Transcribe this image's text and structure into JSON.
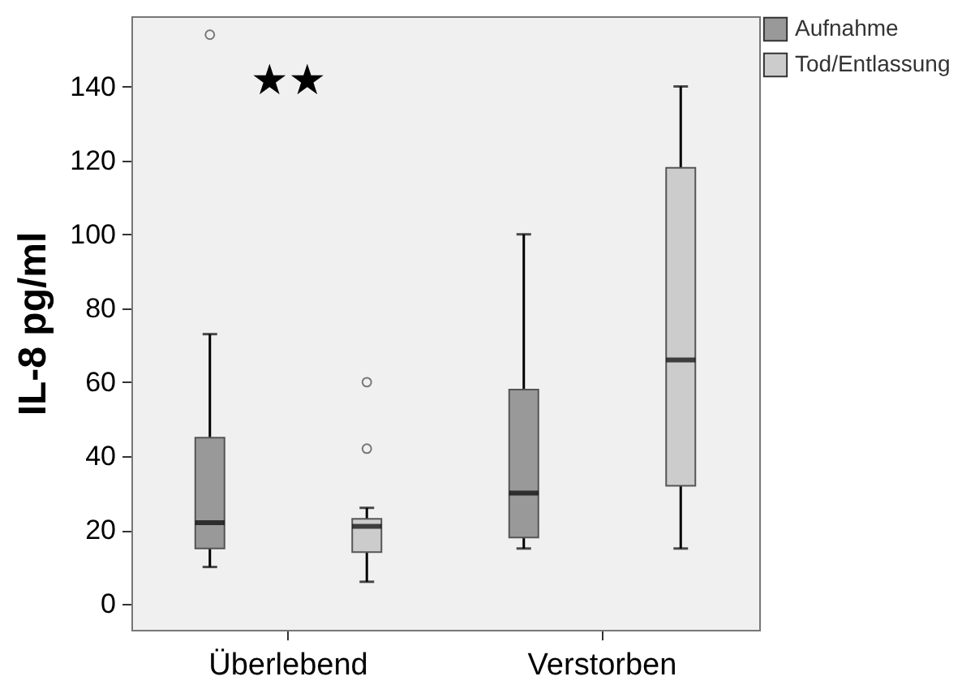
{
  "chart_data": {
    "type": "box",
    "ylabel": "IL-8 pg/ml",
    "categories": [
      "Überlebend",
      "Verstorben"
    ],
    "series": [
      {
        "name": "Aufnahme",
        "color": "#999999",
        "boxes": [
          {
            "low": 10,
            "q1": 15,
            "median": 22,
            "q3": 45,
            "high": 73,
            "outliers": [
              154
            ]
          },
          {
            "low": 15,
            "q1": 18,
            "median": 30,
            "q3": 58,
            "high": 100
          }
        ]
      },
      {
        "name": "Tod/Entlassung",
        "color": "#cccccc",
        "boxes": [
          {
            "low": 6,
            "q1": 14,
            "median": 21,
            "q3": 23,
            "high": 26,
            "outliers": [
              42,
              60
            ]
          },
          {
            "low": 15,
            "q1": 32,
            "median": 66,
            "q3": 118,
            "high": 140
          }
        ]
      }
    ],
    "ylim": [
      -7,
      159
    ],
    "yticks": [
      0,
      20,
      40,
      60,
      80,
      100,
      120,
      140
    ],
    "grid": false,
    "legend": "top right",
    "annotations": [
      "★★"
    ]
  }
}
